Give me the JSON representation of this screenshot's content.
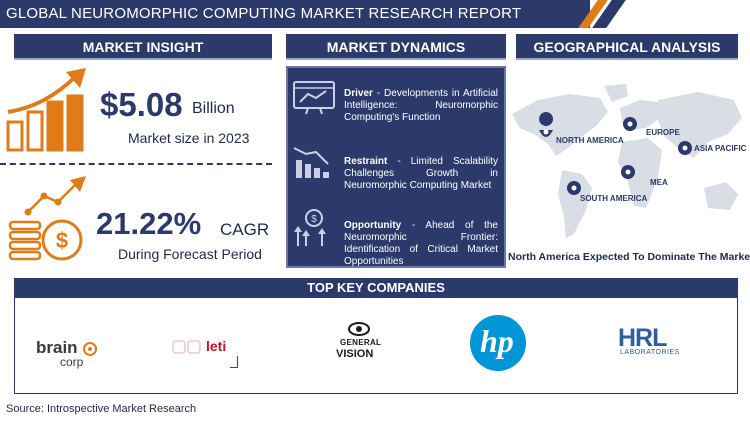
{
  "header": {
    "title": "GLOBAL NEUROMORPHIC COMPUTING MARKET RESEARCH REPORT"
  },
  "market_insight": {
    "heading": "MARKET INSIGHT",
    "market_size_value": "$5.08",
    "market_size_unit": "Billion",
    "market_size_caption": "Market size in 2023",
    "cagr_value": "21.22%",
    "cagr_unit": "CAGR",
    "cagr_caption": "During Forecast Period"
  },
  "market_dynamics": {
    "heading": "MARKET DYNAMICS",
    "items": [
      {
        "label": "Driver",
        "text": " - Developments in Artificial Intelligence: Neuromorphic Computing's Function"
      },
      {
        "label": "Restraint",
        "text": " - Limited Scalability Challenges Growth in Neuromorphic Computing Market"
      },
      {
        "label": "Opportunity",
        "text": " - Ahead of the Neuromorphic Frontier: Identification of Critical Market Opportunities"
      }
    ]
  },
  "geographical_analysis": {
    "heading": "GEOGRAPHICAL ANALYSIS",
    "regions": [
      "NORTH AMERICA",
      "EUROPE",
      "ASIA PACIFIC",
      "MEA",
      "SOUTH AMERICA"
    ],
    "caption": "North America Expected To Dominate The Market"
  },
  "top_key_companies": {
    "heading": "TOP KEY COMPANIES",
    "companies": [
      {
        "name": "brain",
        "sub": "corp"
      },
      {
        "name": "leti"
      },
      {
        "name": "GENERAL",
        "sub": "VISION"
      },
      {
        "name": "hp"
      },
      {
        "name": "HRL",
        "sub": "LABORATORIES"
      }
    ]
  },
  "footer": {
    "source": "Source: Introspective Market Research"
  },
  "colors": {
    "navy": "#2b3a6b",
    "orange": "#e07b1a",
    "hp_blue": "#0096d6",
    "map_grey": "#d9dde6"
  }
}
